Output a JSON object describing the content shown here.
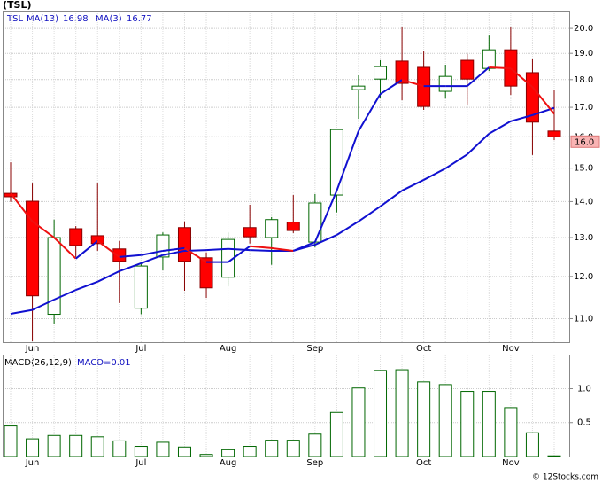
{
  "chart_data": [
    {
      "type": "candlestick",
      "title": "(TSL)",
      "symbol": "TSL",
      "categories": [
        null,
        "Jun",
        null,
        null,
        null,
        null,
        "Jul",
        null,
        null,
        null,
        "Aug",
        null,
        null,
        null,
        "Sep",
        null,
        null,
        null,
        null,
        "Oct",
        null,
        null,
        null,
        "Nov",
        null,
        null
      ],
      "open": [
        14.24,
        14.01,
        11.1,
        13.24,
        13.05,
        12.7,
        11.24,
        12.49,
        13.27,
        12.47,
        11.98,
        13.27,
        13.0,
        13.42,
        12.88,
        14.19,
        17.63,
        18.02,
        18.7,
        18.46,
        17.57,
        18.73,
        18.42,
        19.14,
        18.26,
        16.19
      ],
      "high": [
        15.18,
        14.53,
        13.49,
        13.31,
        14.53,
        12.91,
        12.36,
        13.14,
        13.44,
        12.61,
        13.14,
        13.91,
        13.56,
        14.19,
        14.22,
        16.24,
        18.16,
        18.73,
        20.04,
        19.1,
        18.56,
        18.97,
        19.71,
        20.07,
        18.8,
        17.63
      ],
      "low": [
        13.99,
        10.5,
        10.87,
        12.49,
        12.65,
        11.36,
        11.1,
        12.15,
        11.65,
        11.48,
        11.76,
        12.84,
        12.29,
        13.12,
        12.74,
        13.69,
        16.6,
        17.35,
        17.25,
        16.91,
        17.31,
        17.1,
        18.32,
        17.44,
        15.41,
        15.89
      ],
      "close": [
        14.14,
        11.53,
        13.0,
        12.79,
        12.84,
        12.38,
        12.26,
        13.07,
        12.38,
        11.72,
        12.95,
        13.02,
        13.49,
        13.19,
        13.96,
        16.24,
        17.76,
        18.49,
        17.86,
        17.03,
        18.12,
        18.02,
        19.14,
        17.76,
        16.49,
        16.0
      ],
      "last_label": "16.0",
      "up_color": "#ffffff",
      "down_color": "#ff0000",
      "up_edge": "#006600",
      "down_edge": "#880000",
      "series": [
        {
          "name": "MA(13)",
          "color": "#1010d0",
          "values": [
            11.11,
            11.2,
            11.44,
            11.67,
            11.87,
            12.13,
            12.33,
            12.54,
            12.65,
            12.67,
            12.7,
            12.67,
            12.65,
            12.65,
            12.81,
            13.07,
            13.44,
            13.86,
            14.32,
            14.64,
            14.99,
            15.43,
            16.1,
            16.52,
            16.73,
            16.98
          ]
        },
        {
          "name": "MA(3)",
          "up_color": "#1010d0",
          "down_color": "#ee1010",
          "values": [
            14.24,
            13.44,
            13.0,
            12.45,
            12.91,
            12.49,
            12.54,
            12.65,
            12.72,
            12.36,
            12.36,
            12.77,
            12.72,
            12.65,
            12.88,
            14.32,
            16.19,
            17.47,
            17.99,
            17.76,
            17.76,
            17.76,
            18.46,
            18.42,
            17.73,
            16.77
          ]
        }
      ],
      "ylim": [
        10.48,
        20.71
      ],
      "log_scale": true,
      "grid": true,
      "yticks": [
        {
          "value": 11,
          "label": "11.0"
        },
        {
          "value": 12,
          "label": "12.0"
        },
        {
          "value": 13,
          "label": "13.0"
        },
        {
          "value": 14,
          "label": "14.0"
        },
        {
          "value": 15,
          "label": "15.0"
        },
        {
          "value": 16,
          "label": "16.0"
        },
        {
          "value": 17,
          "label": "17.0"
        },
        {
          "value": 18,
          "label": "18.0"
        },
        {
          "value": 19,
          "label": "19.0"
        },
        {
          "value": 20,
          "label": "20.0"
        }
      ]
    },
    {
      "type": "bar",
      "title": "MACD(26,12,9)",
      "legend": "MACD=0.01",
      "categories": [
        null,
        "Jun",
        null,
        null,
        null,
        null,
        "Jul",
        null,
        null,
        null,
        "Aug",
        null,
        null,
        null,
        "Sep",
        null,
        null,
        null,
        null,
        "Oct",
        null,
        null,
        null,
        "Nov",
        null,
        null
      ],
      "values": [
        0.45,
        0.26,
        0.31,
        0.31,
        0.29,
        0.23,
        0.15,
        0.21,
        0.14,
        0.03,
        0.1,
        0.15,
        0.24,
        0.24,
        0.33,
        0.65,
        1.01,
        1.27,
        1.28,
        1.1,
        1.06,
        0.96,
        0.96,
        0.72,
        0.35,
        0.01
      ],
      "color": "#ffffff",
      "edge": "#006600",
      "ylim": [
        0,
        1.49
      ],
      "yticks": [
        0.5,
        {
          "value": 1,
          "label": "1.0"
        }
      ],
      "grid": true
    },
    {
      "type": "footer",
      "text": "© 12Stocks.com"
    }
  ]
}
